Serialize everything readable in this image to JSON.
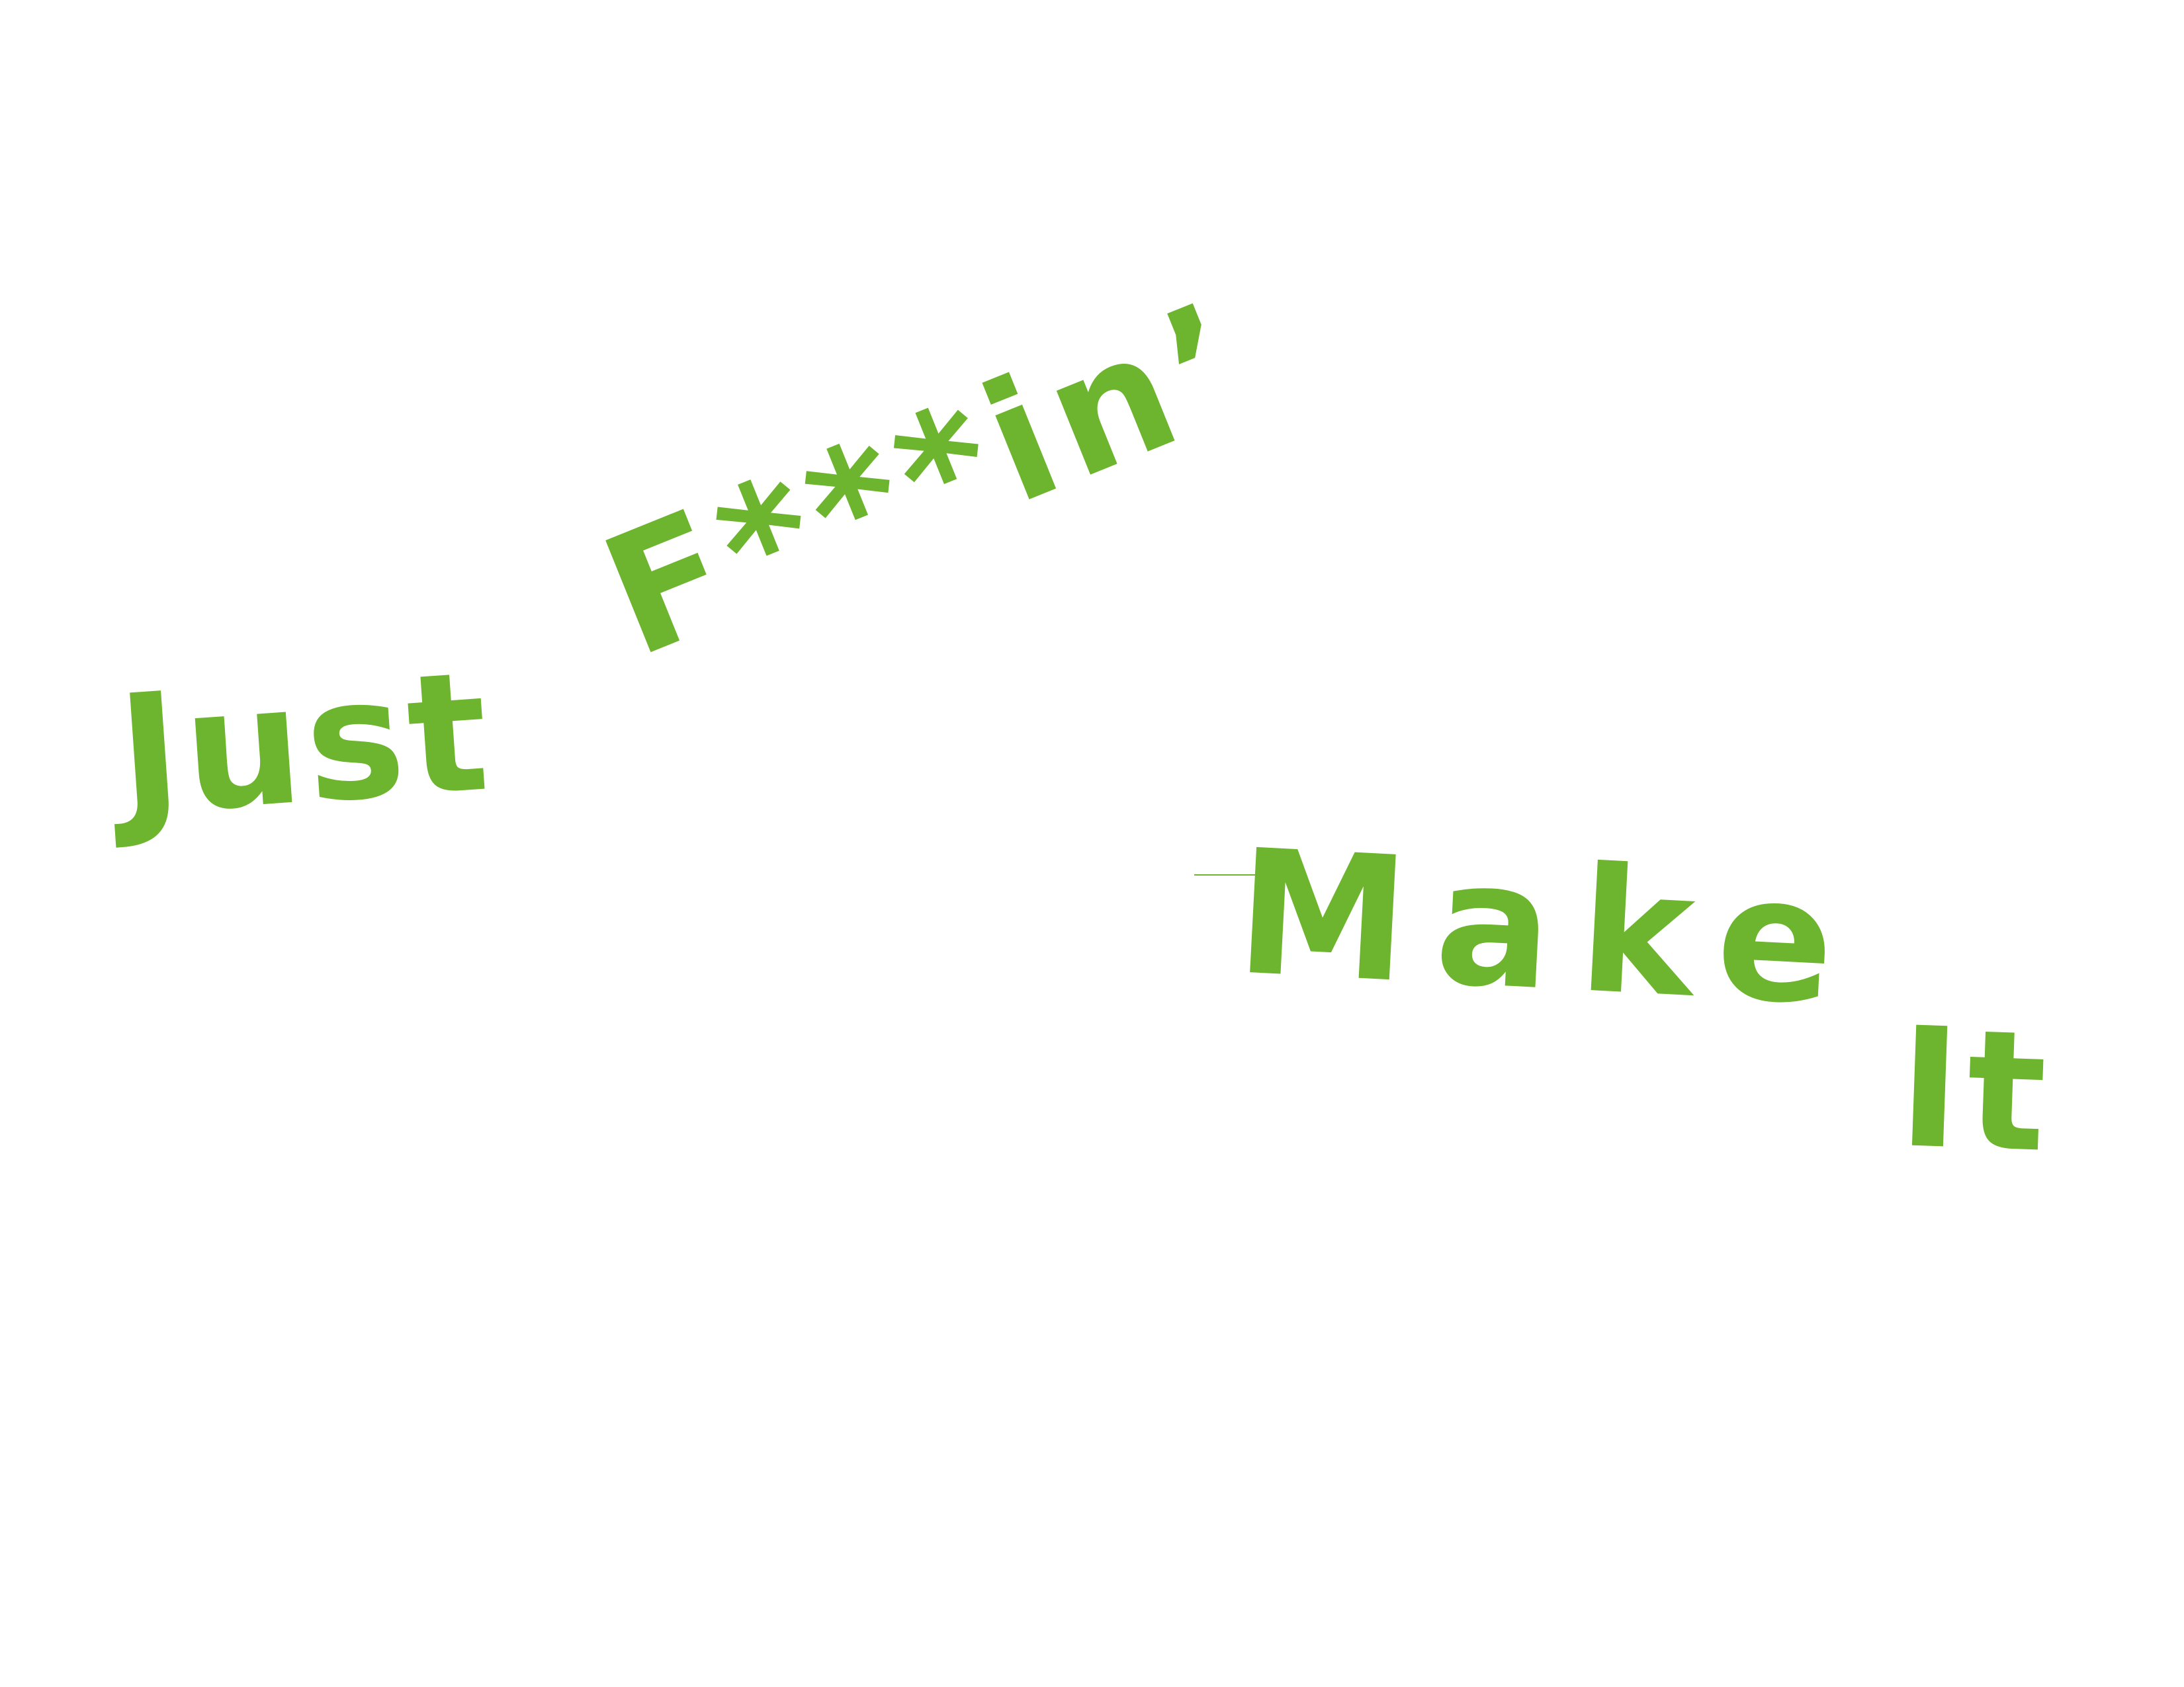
{
  "artwork": {
    "words": [
      {
        "id": "just",
        "text": "Just"
      },
      {
        "id": "fkn",
        "text": "F***in’"
      },
      {
        "id": "make",
        "text": "Make"
      },
      {
        "id": "it",
        "text": "It"
      }
    ]
  },
  "colors": {
    "background": "#ffffff",
    "text": "#6db52e"
  }
}
